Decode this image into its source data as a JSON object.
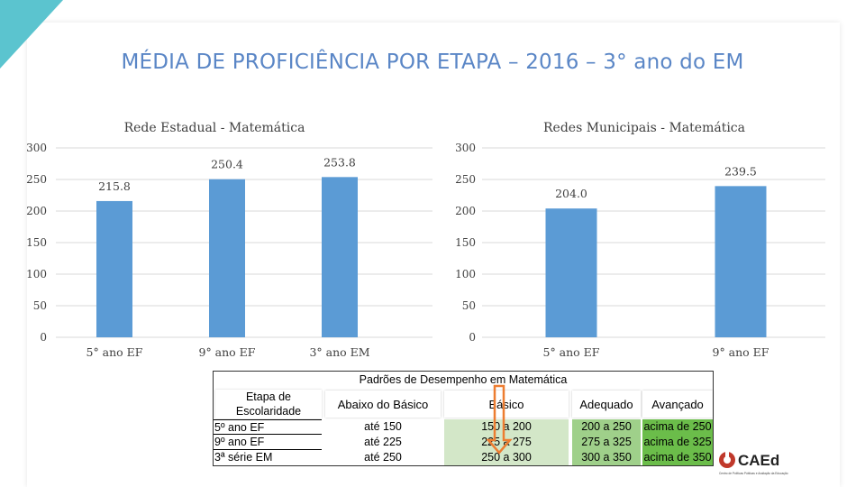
{
  "title": "MÉDIA DE PROFICIÊNCIA POR ETAPA – 2016 – 3° ano do EM",
  "colors": {
    "bar": "#5b9bd5",
    "title": "#5a86c6",
    "accent": "#5bc4cf",
    "abaixo": "#ffffff",
    "basico": "#d3e7c8",
    "adequado": "#9fd08a",
    "avancado": "#6bbd4a",
    "arrow": "#ed7d31"
  },
  "chart_data": [
    {
      "type": "bar",
      "title": "Rede Estadual - Matemática",
      "categories": [
        "5° ano EF",
        "9° ano EF",
        "3° ano EM"
      ],
      "values": [
        215.8,
        250.4,
        253.8
      ],
      "value_labels": [
        "215.8",
        "250.4",
        "253.8"
      ],
      "yticks": [
        "0",
        "50",
        "100",
        "150",
        "200",
        "250",
        "300"
      ],
      "ylim": [
        0,
        300
      ]
    },
    {
      "type": "bar",
      "title": "Redes Municipais - Matemática",
      "categories": [
        "5° ano EF",
        "9° ano EF"
      ],
      "values": [
        204.0,
        239.5
      ],
      "value_labels": [
        "204.0",
        "239.5"
      ],
      "yticks": [
        "0",
        "50",
        "100",
        "150",
        "200",
        "250",
        "300"
      ],
      "ylim": [
        0,
        300
      ]
    }
  ],
  "table": {
    "title": "Padrões de Desempenho em Matemática",
    "etapa_header": "Etapa de Escolaridade",
    "levels": [
      "Abaixo do Básico",
      "Básico",
      "Adequado",
      "Avançado"
    ],
    "rows": [
      {
        "etapa": "5º ano EF",
        "values": [
          "até 150",
          "150 a 200",
          "200 a 250",
          "acima de 250"
        ]
      },
      {
        "etapa": "9º ano EF",
        "values": [
          "até 225",
          "225 a 275",
          "275 a 325",
          "acima de 325"
        ]
      },
      {
        "etapa": "3ª série EM",
        "values": [
          "até 250",
          "250 a 300",
          "300 a 350",
          "acima de 350"
        ]
      }
    ]
  },
  "logo": {
    "text": "CAEd",
    "subtitle": "Centro de Políticas Públicas e Avaliação da Educação"
  }
}
